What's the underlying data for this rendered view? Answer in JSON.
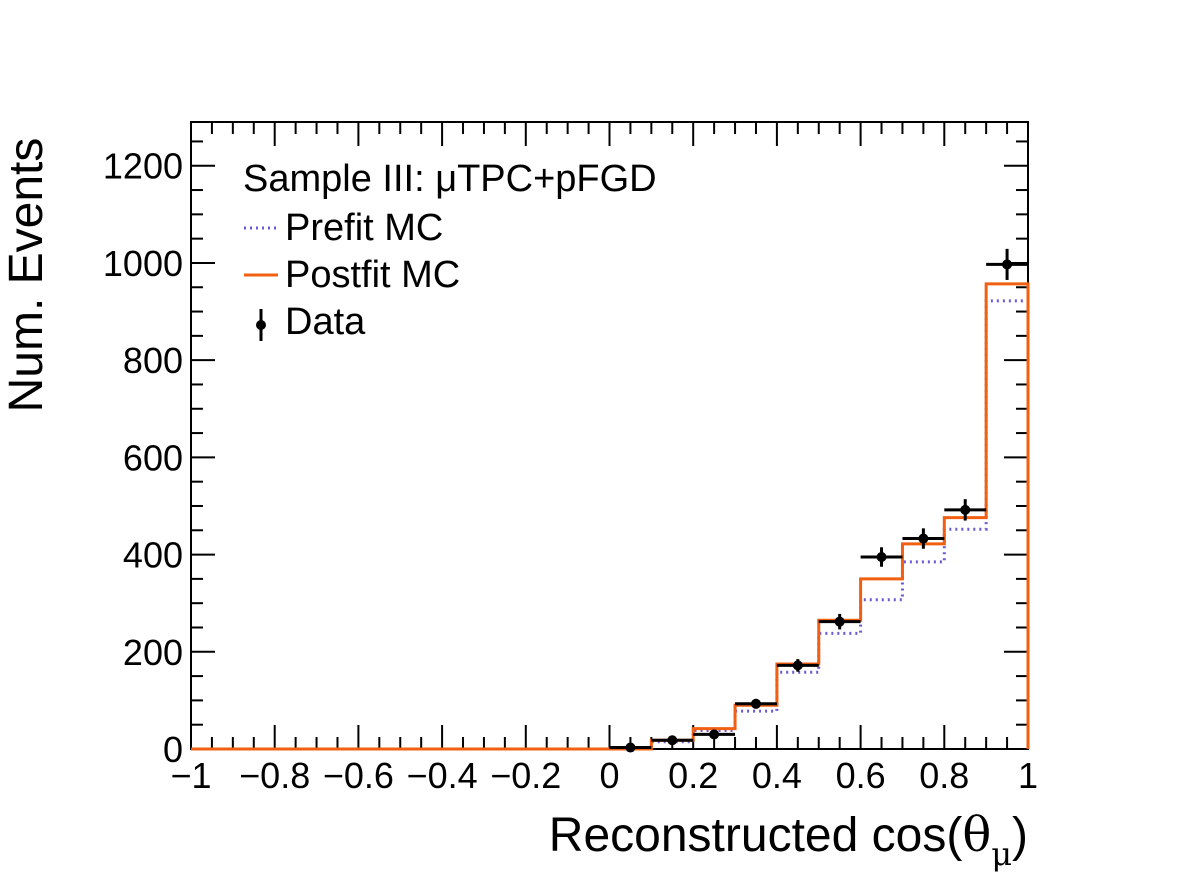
{
  "chart_data": {
    "type": "histogram",
    "xlabel": "Reconstructed cos(θ_μ)",
    "xlabel_main": "Reconstructed cos(",
    "xlabel_theta": "θ",
    "xlabel_sub": "μ",
    "xlabel_close": ")",
    "ylabel": "Num. Events",
    "xlim": [
      -1,
      1
    ],
    "ylim": [
      0,
      1290
    ],
    "x_ticks": [
      -1,
      -0.8,
      -0.6,
      -0.4,
      -0.2,
      0,
      0.2,
      0.4,
      0.6,
      0.8,
      1
    ],
    "x_tick_labels": [
      "−1",
      "−0.8",
      "−0.6",
      "−0.4",
      "−0.2",
      "0",
      "0.2",
      "0.4",
      "0.6",
      "0.8",
      "1"
    ],
    "y_ticks": [
      0,
      200,
      400,
      600,
      800,
      1000,
      1200
    ],
    "y_tick_labels": [
      "0",
      "200",
      "400",
      "600",
      "800",
      "1000",
      "1200"
    ],
    "bin_edges": [
      -1,
      0,
      0.1,
      0.2,
      0.3,
      0.4,
      0.5,
      0.6,
      0.7,
      0.8,
      0.9,
      1
    ],
    "legend_placement": "top-left",
    "legend_title": "Sample III: μTPC+pFGD",
    "series": [
      {
        "name": "Prefit MC",
        "style": "dotted",
        "color": "#6a5ad6",
        "values": [
          0,
          0,
          15,
          38,
          78,
          158,
          238,
          307,
          385,
          452,
          922
        ]
      },
      {
        "name": "Postfit MC",
        "style": "solid",
        "color": "#f06010",
        "values": [
          0,
          0,
          18,
          42,
          90,
          175,
          265,
          350,
          422,
          476,
          957
        ]
      },
      {
        "name": "Data",
        "style": "points",
        "color": "#000000",
        "x": [
          0.05,
          0.15,
          0.25,
          0.35,
          0.45,
          0.55,
          0.65,
          0.75,
          0.85,
          0.95
        ],
        "values": [
          3,
          18,
          30,
          93,
          172,
          262,
          395,
          433,
          492,
          997
        ],
        "errors": [
          2,
          4,
          6,
          10,
          13,
          16,
          20,
          21,
          22,
          32
        ]
      }
    ]
  }
}
